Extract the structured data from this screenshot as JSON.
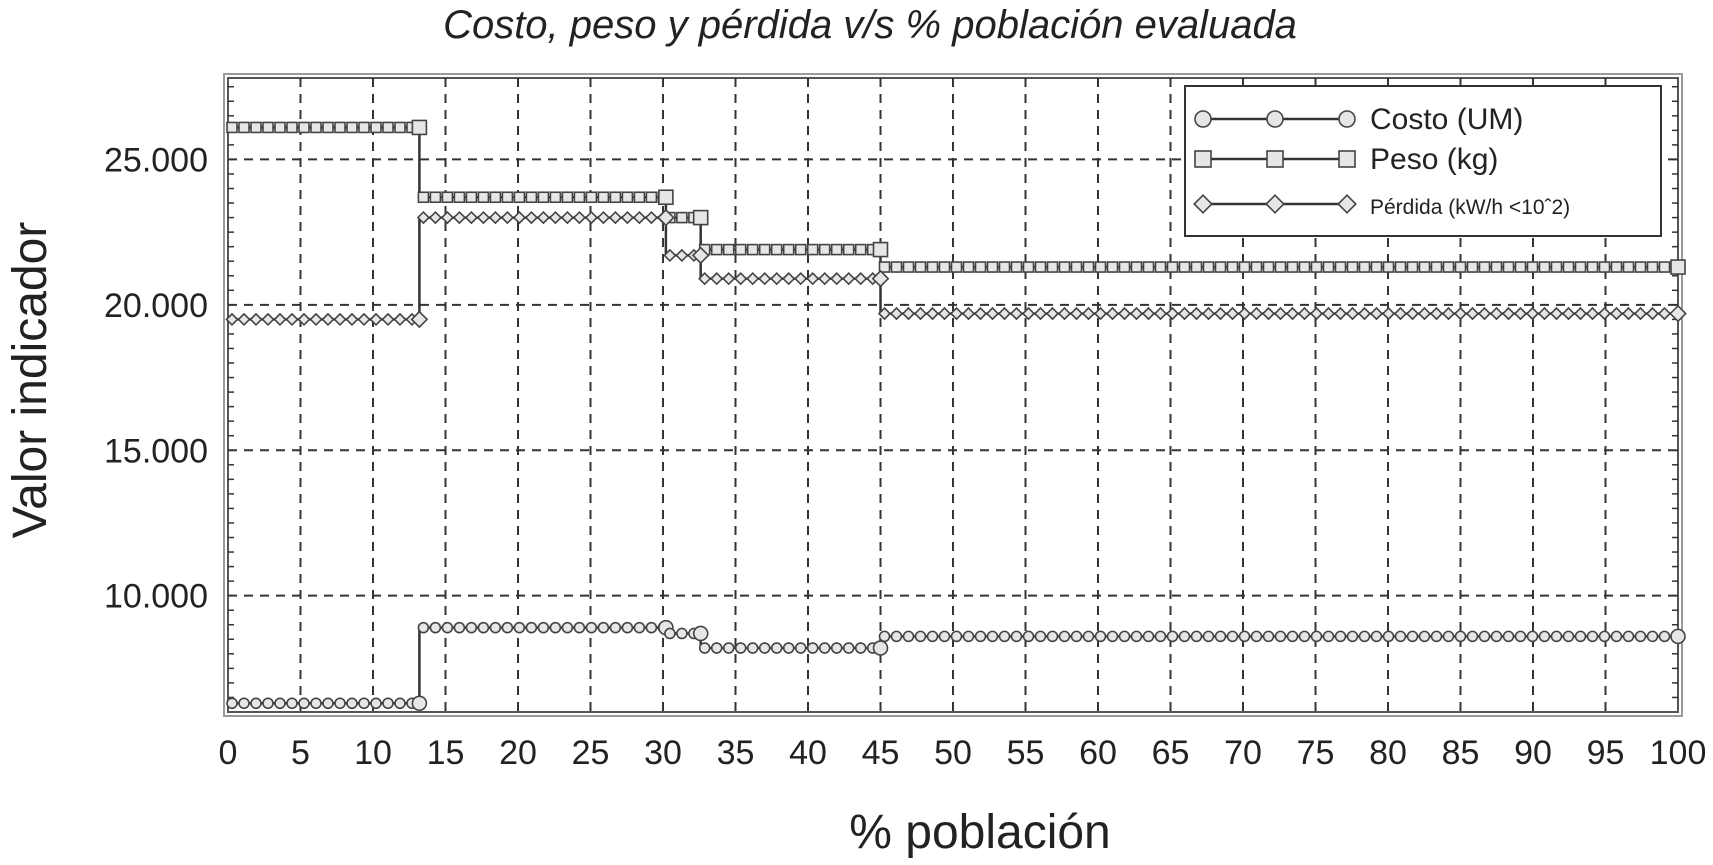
{
  "chart_data": {
    "type": "line",
    "title": "Costo, peso y pérdida v/s % población evaluada",
    "xlabel": "% población",
    "ylabel": "Valor indicador",
    "xlim": [
      0,
      100
    ],
    "ylim": [
      6000,
      27800
    ],
    "x_ticks": [
      "0",
      "5",
      "10",
      "15",
      "20",
      "25",
      "30",
      "35",
      "40",
      "45",
      "50",
      "55",
      "60",
      "65",
      "70",
      "75",
      "80",
      "85",
      "90",
      "95",
      "100"
    ],
    "y_ticks": [
      "25.000",
      "20.000",
      "15.000",
      "10.000"
    ],
    "y_tick_values": [
      25000,
      20000,
      15000,
      10000
    ],
    "grid": true,
    "legend_position": "top-right",
    "series": [
      {
        "name": "Costo (UM)",
        "marker": "circle",
        "segments": [
          {
            "x": [
              0,
              13.2
            ],
            "y": 6300
          },
          {
            "x": [
              13.2,
              30.2
            ],
            "y": 8900
          },
          {
            "x": [
              30.2,
              32.6
            ],
            "y": 8700
          },
          {
            "x": [
              32.6,
              45
            ],
            "y": 8200
          },
          {
            "x": [
              45,
              100
            ],
            "y": 8600
          }
        ]
      },
      {
        "name": "Peso (kg)",
        "marker": "square",
        "segments": [
          {
            "x": [
              0,
              13.2
            ],
            "y": 26100
          },
          {
            "x": [
              13.2,
              30.2
            ],
            "y": 23700
          },
          {
            "x": [
              30.2,
              32.6
            ],
            "y": 23000
          },
          {
            "x": [
              32.6,
              45
            ],
            "y": 21900
          },
          {
            "x": [
              45,
              100
            ],
            "y": 21300
          }
        ]
      },
      {
        "name": "Pérdida (kW/h <10ˆ2)",
        "marker": "diamond",
        "segments": [
          {
            "x": [
              0,
              13.2
            ],
            "y": 19500
          },
          {
            "x": [
              13.2,
              30.2
            ],
            "y": 23000
          },
          {
            "x": [
              30.2,
              32.6
            ],
            "y": 21700
          },
          {
            "x": [
              32.6,
              45
            ],
            "y": 20900
          },
          {
            "x": [
              45,
              100
            ],
            "y": 19700
          }
        ]
      }
    ]
  }
}
